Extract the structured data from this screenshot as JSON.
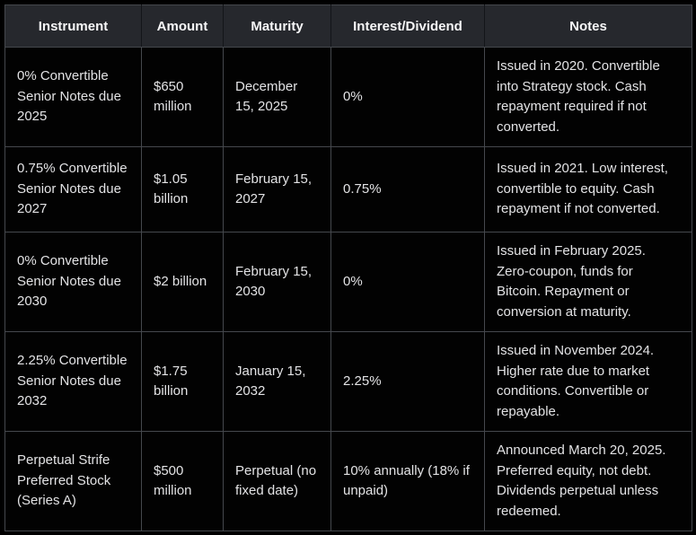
{
  "chart_data": {
    "type": "table",
    "title": "",
    "columns": [
      "Instrument",
      "Amount",
      "Maturity",
      "Interest/Dividend",
      "Notes"
    ],
    "rows": [
      {
        "instrument": "0% Convertible Senior Notes due 2025",
        "amount": "$650 million",
        "maturity": "December 15, 2025",
        "interest_dividend": "0%",
        "notes": "Issued in 2020. Convertible into Strategy stock. Cash repayment required if not converted."
      },
      {
        "instrument": "0.75% Convertible Senior Notes due 2027",
        "amount": "$1.05 billion",
        "maturity": "February 15, 2027",
        "interest_dividend": "0.75%",
        "notes": "Issued in 2021. Low interest, convertible to equity. Cash repayment if not converted."
      },
      {
        "instrument": "0% Convertible Senior Notes due 2030",
        "amount": "$2 billion",
        "maturity": "February 15, 2030",
        "interest_dividend": "0%",
        "notes": "Issued in February 2025. Zero-coupon, funds for Bitcoin. Repayment or conversion at maturity."
      },
      {
        "instrument": "2.25% Convertible Senior Notes due 2032",
        "amount": "$1.75 billion",
        "maturity": "January 15, 2032",
        "interest_dividend": "2.25%",
        "notes": "Issued in November 2024. Higher rate due to market conditions. Convertible or repayable."
      },
      {
        "instrument": "Perpetual Strife Preferred Stock (Series A)",
        "amount": "$500 million",
        "maturity": "Perpetual (no fixed date)",
        "interest_dividend": "10% annually (18% if unpaid)",
        "notes": "Announced March 20, 2025. Preferred equity, not debt. Dividends perpetual unless redeemed."
      }
    ],
    "layout": {
      "grid": true,
      "header_position": "top"
    },
    "colors": {
      "background": "#000000",
      "header_background": "#26282d",
      "header_text": "#f7f7f8",
      "cell_background": "#020202",
      "cell_text": "#e3e3e5",
      "grid_border": "#45484d",
      "header_separator": "#131519"
    }
  }
}
